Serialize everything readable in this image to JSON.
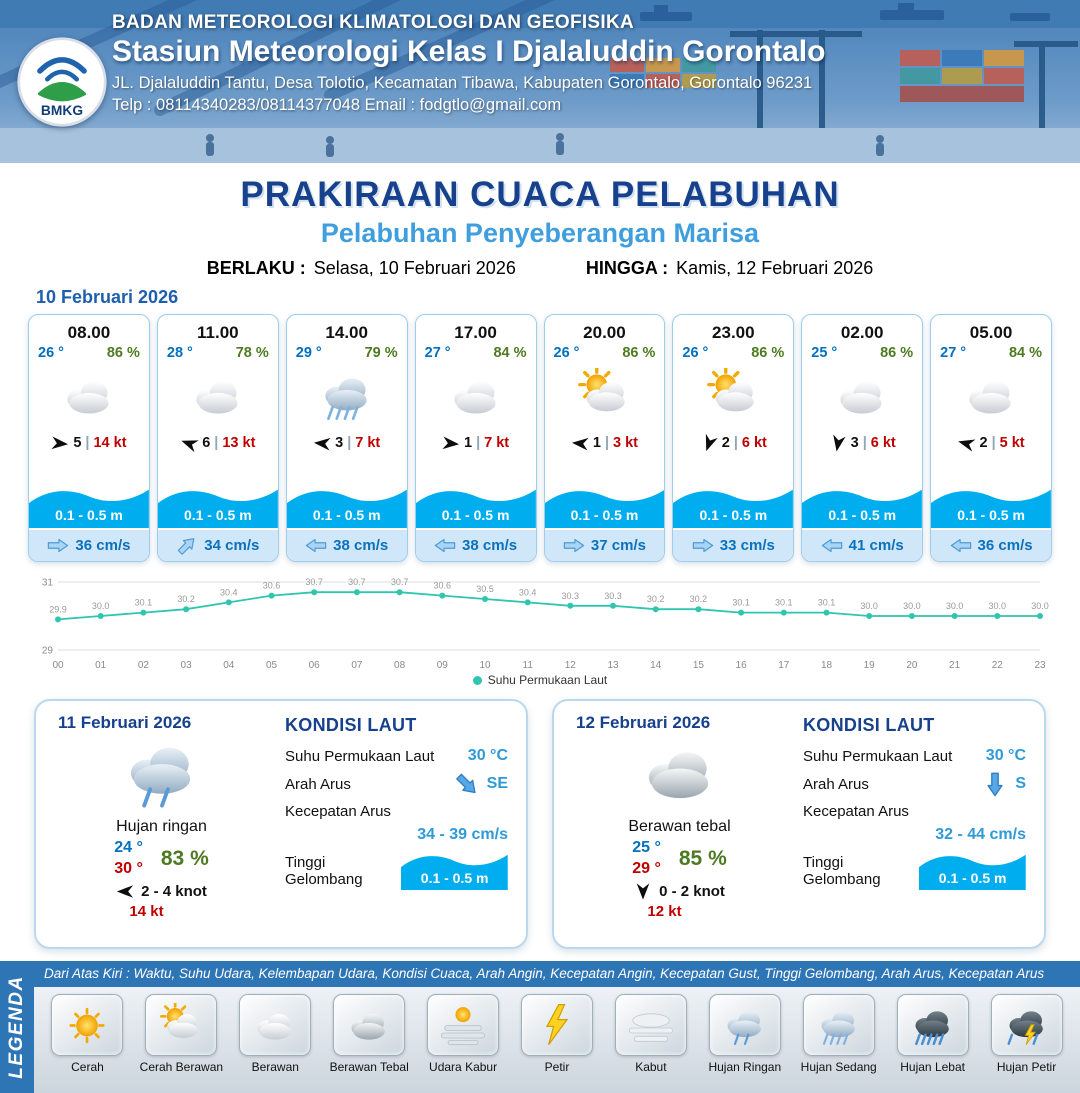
{
  "header": {
    "org": "BADAN METEOROLOGI KLIMATOLOGI DAN GEOFISIKA",
    "station": "Stasiun Meteorologi Kelas I Djalaluddin Gorontalo",
    "address": "JL. Djalaluddin Tantu, Desa Tolotio, Kecamatan Tibawa, Kabupaten Gorontalo, Gorontalo 96231",
    "contact": "Telp : 08114340283/08114377048 Email : fodgtlo@gmail.com",
    "logo_text": "BMKG"
  },
  "title": {
    "main": "PRAKIRAAN CUACA PELABUHAN",
    "sub": "Pelabuhan Penyeberangan Marisa",
    "berlaku_label": "BERLAKU :",
    "berlaku_value": "Selasa, 10 Februari 2026",
    "hingga_label": "HINGGA :",
    "hingga_value": "Kamis, 12 Februari 2026"
  },
  "forecast": {
    "date": "10 Februari 2026",
    "separator": "|",
    "cards": [
      {
        "time": "08.00",
        "temp": "26 °",
        "humidity": "86 %",
        "icon": "berawan",
        "wind_dir_deg": 5,
        "wind_num": "5",
        "gust": "14 kt",
        "wave": "0.1 - 0.5 m",
        "current_dir_deg": 0,
        "current": "36 cm/s"
      },
      {
        "time": "11.00",
        "temp": "28 °",
        "humidity": "78 %",
        "icon": "berawan",
        "wind_dir_deg": 200,
        "wind_num": "6",
        "gust": "13 kt",
        "wave": "0.1 - 0.5 m",
        "current_dir_deg": -45,
        "current": "34 cm/s"
      },
      {
        "time": "14.00",
        "temp": "29 °",
        "humidity": "79 %",
        "icon": "hujan-sedang",
        "wind_dir_deg": 185,
        "wind_num": "3",
        "gust": "7 kt",
        "wave": "0.1 - 0.5 m",
        "current_dir_deg": 180,
        "current": "38 cm/s"
      },
      {
        "time": "17.00",
        "temp": "27 °",
        "humidity": "84 %",
        "icon": "berawan",
        "wind_dir_deg": 5,
        "wind_num": "1",
        "gust": "7 kt",
        "wave": "0.1 - 0.5 m",
        "current_dir_deg": 180,
        "current": "38 cm/s"
      },
      {
        "time": "20.00",
        "temp": "26 °",
        "humidity": "86 %",
        "icon": "cerah-berawan",
        "wind_dir_deg": 185,
        "wind_num": "1",
        "gust": "3 kt",
        "wave": "0.1 - 0.5 m",
        "current_dir_deg": 0,
        "current": "37 cm/s"
      },
      {
        "time": "23.00",
        "temp": "26 °",
        "humidity": "86 %",
        "icon": "cerah-berawan",
        "wind_dir_deg": 110,
        "wind_num": "2",
        "gust": "6 kt",
        "wave": "0.1 - 0.5 m",
        "current_dir_deg": 0,
        "current": "33 cm/s"
      },
      {
        "time": "02.00",
        "temp": "25 °",
        "humidity": "86 %",
        "icon": "berawan",
        "wind_dir_deg": 100,
        "wind_num": "3",
        "gust": "6 kt",
        "wave": "0.1 - 0.5 m",
        "current_dir_deg": 180,
        "current": "41 cm/s"
      },
      {
        "time": "05.00",
        "temp": "27 °",
        "humidity": "84 %",
        "icon": "berawan",
        "wind_dir_deg": 195,
        "wind_num": "2",
        "gust": "5 kt",
        "wave": "0.1 - 0.5 m",
        "current_dir_deg": 180,
        "current": "36 cm/s"
      }
    ]
  },
  "chart_data": {
    "type": "line",
    "title": "",
    "x": [
      "00",
      "01",
      "02",
      "03",
      "04",
      "05",
      "06",
      "07",
      "08",
      "09",
      "10",
      "11",
      "12",
      "13",
      "14",
      "15",
      "16",
      "17",
      "18",
      "19",
      "20",
      "21",
      "22",
      "23"
    ],
    "series": [
      {
        "name": "Suhu Permukaan Laut",
        "values": [
          29.9,
          30.0,
          30.1,
          30.2,
          30.4,
          30.6,
          30.7,
          30.7,
          30.7,
          30.6,
          30.5,
          30.4,
          30.3,
          30.3,
          30.2,
          30.2,
          30.1,
          30.1,
          30.1,
          30.0,
          30.0,
          30.0,
          30.0,
          30.0
        ]
      }
    ],
    "ylim": [
      29,
      31
    ],
    "line_color": "#2fc5ae",
    "legend_position": "bottom"
  },
  "daily": [
    {
      "date": "11 Februari 2026",
      "icon": "hujan-ringan",
      "condition": "Hujan ringan",
      "temp_min": "24 °",
      "temp_max": "30 °",
      "humidity": "83 %",
      "wind_dir_deg": 180,
      "wind_range": "2  - 4 knot",
      "gust": "14 kt",
      "sea": {
        "title": "KONDISI LAUT",
        "sst_label": "Suhu Permukaan Laut",
        "sst_value": "30 °C",
        "current_dir_label": "Arah Arus",
        "current_dir_deg": 45,
        "current_dir_value": "SE",
        "current_speed_label": "Kecepatan Arus",
        "current_speed_value": "34  - 39 cm/s",
        "wave_label": "Tinggi Gelombang",
        "wave_value": "0.1 - 0.5 m"
      }
    },
    {
      "date": "12 Februari 2026",
      "icon": "berawan-tebal",
      "condition": "Berawan tebal",
      "temp_min": "25 °",
      "temp_max": "29 °",
      "humidity": "85 %",
      "wind_dir_deg": 90,
      "wind_range": "0  - 2 knot",
      "gust": "12 kt",
      "sea": {
        "title": "KONDISI LAUT",
        "sst_label": "Suhu Permukaan Laut",
        "sst_value": "30 °C",
        "current_dir_label": "Arah Arus",
        "current_dir_deg": 90,
        "current_dir_value": "S",
        "current_speed_label": "Kecepatan Arus",
        "current_speed_value": "32  - 44 cm/s",
        "wave_label": "Tinggi Gelombang",
        "wave_value": "0.1 - 0.5 m"
      }
    }
  ],
  "legend": {
    "label": "LEGENDA",
    "note": "Dari Atas Kiri : Waktu, Suhu Udara, Kelembapan Udara, Kondisi Cuaca, Arah Angin, Kecepatan Angin, Kecepatan Gust, Tinggi Gelombang, Arah Arus, Kecepatan Arus",
    "items": [
      {
        "icon": "cerah",
        "label": "Cerah"
      },
      {
        "icon": "cerah-berawan",
        "label": "Cerah Berawan"
      },
      {
        "icon": "berawan",
        "label": "Berawan"
      },
      {
        "icon": "berawan-tebal",
        "label": "Berawan Tebal"
      },
      {
        "icon": "udara-kabur",
        "label": "Udara Kabur"
      },
      {
        "icon": "petir",
        "label": "Petir"
      },
      {
        "icon": "kabut",
        "label": "Kabut"
      },
      {
        "icon": "hujan-ringan",
        "label": "Hujan Ringan"
      },
      {
        "icon": "hujan-sedang",
        "label": "Hujan Sedang"
      },
      {
        "icon": "hujan-lebat",
        "label": "Hujan Lebat"
      },
      {
        "icon": "hujan-petir",
        "label": "Hujan Petir"
      }
    ]
  },
  "colors": {
    "accent_blue": "#1d5fae",
    "title_navy": "#17418c",
    "subtitle_blue": "#3f9ede",
    "temp_blue": "#0070c0",
    "humidity_green": "#4e7a21",
    "gust_red": "#c00000",
    "wave_blue": "#00aeef",
    "legend_bar_blue": "#2e75b6",
    "sst_line": "#2fc5ae"
  }
}
